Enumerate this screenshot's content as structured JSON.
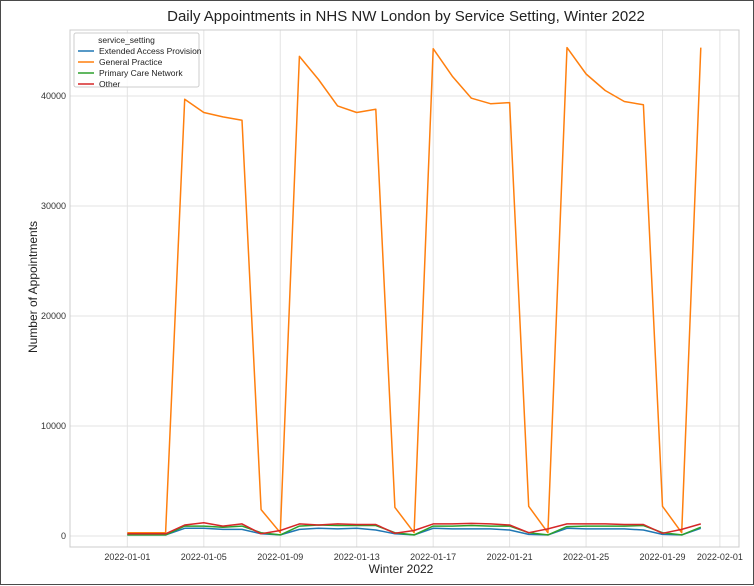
{
  "chart_data": {
    "type": "line",
    "title": "Daily Appointments in NHS NW London by Service Setting, Winter 2022",
    "xlabel": "Winter 2022",
    "ylabel": "Number of Appointments",
    "xlim": [
      "2021-12-29",
      "2022-02-02"
    ],
    "ylim": [
      -1000,
      46000
    ],
    "grid": true,
    "legend": {
      "title": "service_setting",
      "placement": "top-left"
    },
    "x_ticks": [
      "2022-01-01",
      "2022-01-05",
      "2022-01-09",
      "2022-01-13",
      "2022-01-17",
      "2022-01-21",
      "2022-01-25",
      "2022-01-29",
      "2022-02-01"
    ],
    "y_ticks": [
      0,
      10000,
      20000,
      30000,
      40000
    ],
    "x": [
      "2022-01-01",
      "2022-01-02",
      "2022-01-03",
      "2022-01-04",
      "2022-01-05",
      "2022-01-06",
      "2022-01-07",
      "2022-01-08",
      "2022-01-09",
      "2022-01-10",
      "2022-01-11",
      "2022-01-12",
      "2022-01-13",
      "2022-01-14",
      "2022-01-15",
      "2022-01-16",
      "2022-01-17",
      "2022-01-18",
      "2022-01-19",
      "2022-01-20",
      "2022-01-21",
      "2022-01-22",
      "2022-01-23",
      "2022-01-24",
      "2022-01-25",
      "2022-01-26",
      "2022-01-27",
      "2022-01-28",
      "2022-01-29",
      "2022-01-30",
      "2022-01-31"
    ],
    "series": [
      {
        "name": "Extended Access Provision",
        "color": "#1f77b4",
        "values": [
          100,
          100,
          100,
          700,
          700,
          600,
          600,
          200,
          100,
          600,
          700,
          650,
          700,
          550,
          200,
          100,
          700,
          650,
          650,
          650,
          550,
          150,
          100,
          700,
          650,
          650,
          650,
          550,
          150,
          100,
          700
        ]
      },
      {
        "name": "General Practice",
        "color": "#ff7f0e",
        "values": [
          300,
          300,
          300,
          39700,
          38500,
          38100,
          37800,
          2400,
          300,
          43600,
          41500,
          39100,
          38500,
          38800,
          2600,
          300,
          44300,
          41800,
          39800,
          39300,
          39400,
          2700,
          300,
          44400,
          42000,
          40500,
          39500,
          39200,
          2700,
          300,
          44400
        ]
      },
      {
        "name": "Primary Care Network",
        "color": "#2ca02c",
        "values": [
          100,
          100,
          100,
          900,
          900,
          800,
          900,
          300,
          100,
          900,
          1000,
          950,
          950,
          950,
          300,
          100,
          900,
          900,
          950,
          900,
          900,
          300,
          100,
          850,
          900,
          900,
          900,
          950,
          300,
          100,
          800
        ]
      },
      {
        "name": "Other",
        "color": "#d62728",
        "values": [
          200,
          200,
          200,
          1000,
          1200,
          900,
          1100,
          200,
          500,
          1100,
          1000,
          1100,
          1050,
          1050,
          250,
          500,
          1100,
          1100,
          1150,
          1100,
          1000,
          300,
          650,
          1100,
          1100,
          1100,
          1050,
          1050,
          250,
          600,
          1100
        ]
      }
    ]
  }
}
